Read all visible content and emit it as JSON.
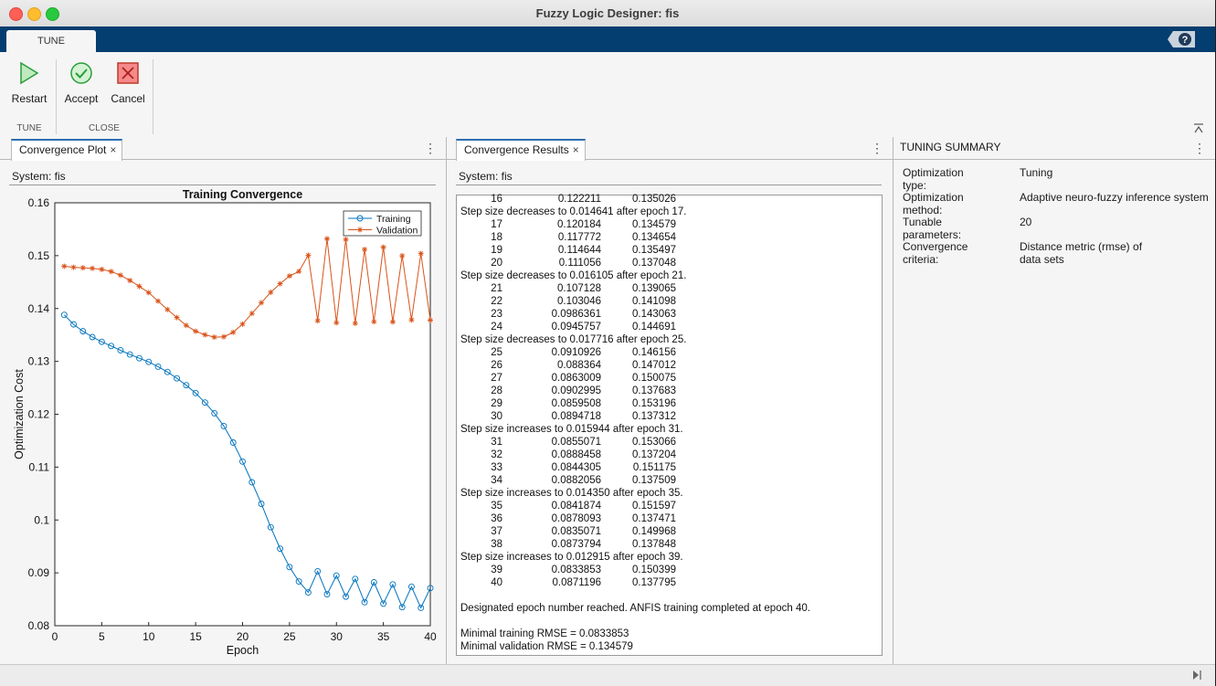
{
  "window": {
    "title": "Fuzzy Logic Designer: fis"
  },
  "ribbon": {
    "tab": "TUNE"
  },
  "toolstrip": {
    "restart_label": "Restart",
    "accept_label": "Accept",
    "cancel_label": "Cancel",
    "section_tune": "TUNE",
    "section_close": "CLOSE"
  },
  "plot_panel": {
    "tab_label": "Convergence Plot",
    "close_glyph": "×",
    "system": "System: fis"
  },
  "results_panel": {
    "tab_label": "Convergence Results",
    "close_glyph": "×",
    "system": "System: fis"
  },
  "summary": {
    "header": "TUNING SUMMARY",
    "rows": [
      {
        "key": "Optimization type:",
        "value": "Tuning"
      },
      {
        "key": "Optimization method:",
        "value": "Adaptive neuro-fuzzy inference system"
      },
      {
        "key": "Tunable parameters:",
        "value": "20"
      },
      {
        "key": "Convergence criteria:",
        "value": "Distance metric (rmse) of data sets"
      }
    ]
  },
  "results": [
    {
      "epoch": "16",
      "train": "0.122211",
      "val": "0.135026"
    },
    {
      "text": "Step size decreases to 0.014641 after epoch 17."
    },
    {
      "epoch": "17",
      "train": "0.120184",
      "val": "0.134579"
    },
    {
      "epoch": "18",
      "train": "0.117772",
      "val": "0.134654"
    },
    {
      "epoch": "19",
      "train": "0.114644",
      "val": "0.135497"
    },
    {
      "epoch": "20",
      "train": "0.111056",
      "val": "0.137048"
    },
    {
      "text": "Step size decreases to 0.016105 after epoch 21."
    },
    {
      "epoch": "21",
      "train": "0.107128",
      "val": "0.139065"
    },
    {
      "epoch": "22",
      "train": "0.103046",
      "val": "0.141098"
    },
    {
      "epoch": "23",
      "train": "0.0986361",
      "val": "0.143063"
    },
    {
      "epoch": "24",
      "train": "0.0945757",
      "val": "0.144691"
    },
    {
      "text": "Step size decreases to 0.017716 after epoch 25."
    },
    {
      "epoch": "25",
      "train": "0.0910926",
      "val": "0.146156"
    },
    {
      "epoch": "26",
      "train": "0.088364",
      "val": "0.147012"
    },
    {
      "epoch": "27",
      "train": "0.0863009",
      "val": "0.150075"
    },
    {
      "epoch": "28",
      "train": "0.0902995",
      "val": "0.137683"
    },
    {
      "epoch": "29",
      "train": "0.0859508",
      "val": "0.153196"
    },
    {
      "epoch": "30",
      "train": "0.0894718",
      "val": "0.137312"
    },
    {
      "text": "Step size increases to 0.015944 after epoch 31."
    },
    {
      "epoch": "31",
      "train": "0.0855071",
      "val": "0.153066"
    },
    {
      "epoch": "32",
      "train": "0.0888458",
      "val": "0.137204"
    },
    {
      "epoch": "33",
      "train": "0.0844305",
      "val": "0.151175"
    },
    {
      "epoch": "34",
      "train": "0.0882056",
      "val": "0.137509"
    },
    {
      "text": "Step size increases to 0.014350 after epoch 35."
    },
    {
      "epoch": "35",
      "train": "0.0841874",
      "val": "0.151597"
    },
    {
      "epoch": "36",
      "train": "0.0878093",
      "val": "0.137471"
    },
    {
      "epoch": "37",
      "train": "0.0835071",
      "val": "0.149968"
    },
    {
      "epoch": "38",
      "train": "0.0873794",
      "val": "0.137848"
    },
    {
      "text": "Step size increases to 0.012915 after epoch 39."
    },
    {
      "epoch": "39",
      "train": "0.0833853",
      "val": "0.150399"
    },
    {
      "epoch": "40",
      "train": "0.0871196",
      "val": "0.137795"
    },
    {
      "text": ""
    },
    {
      "text": "Designated epoch number reached. ANFIS training completed at epoch 40."
    },
    {
      "text": ""
    },
    {
      "text": "Minimal training RMSE = 0.0833853"
    },
    {
      "text": "Minimal validation RMSE = 0.134579"
    }
  ],
  "colors": {
    "training": "#0072bd",
    "validation": "#d95319",
    "ribbon_bar": "#043d6f"
  },
  "chart_data": {
    "type": "line",
    "title": "Training Convergence",
    "xlabel": "Epoch",
    "ylabel": "Optimization Cost",
    "xlim": [
      0,
      40
    ],
    "ylim": [
      0.08,
      0.16
    ],
    "xticks": [
      0,
      5,
      10,
      15,
      20,
      25,
      30,
      35,
      40
    ],
    "yticks": [
      0.08,
      0.09,
      0.1,
      0.11,
      0.12,
      0.13,
      0.14,
      0.15,
      0.16
    ],
    "legend_position": "top-right",
    "grid": false,
    "series": [
      {
        "name": "Training",
        "marker": "circle",
        "color": "#0072bd",
        "x": [
          1,
          2,
          3,
          4,
          5,
          6,
          7,
          8,
          9,
          10,
          11,
          12,
          13,
          14,
          15,
          16,
          17,
          18,
          19,
          20,
          21,
          22,
          23,
          24,
          25,
          26,
          27,
          28,
          29,
          30,
          31,
          32,
          33,
          34,
          35,
          36,
          37,
          38,
          39,
          40
        ],
        "values": [
          0.1388,
          0.137,
          0.1357,
          0.1346,
          0.1337,
          0.1329,
          0.1321,
          0.1313,
          0.1306,
          0.1299,
          0.129,
          0.128,
          0.1268,
          0.1255,
          0.124,
          0.122211,
          0.120184,
          0.117772,
          0.114644,
          0.111056,
          0.107128,
          0.103046,
          0.0986361,
          0.0945757,
          0.0910926,
          0.088364,
          0.0863009,
          0.0902995,
          0.0859508,
          0.0894718,
          0.0855071,
          0.0888458,
          0.0844305,
          0.0882056,
          0.0841874,
          0.0878093,
          0.0835071,
          0.0873794,
          0.0833853,
          0.0871196
        ]
      },
      {
        "name": "Validation",
        "marker": "star",
        "color": "#d95319",
        "x": [
          1,
          2,
          3,
          4,
          5,
          6,
          7,
          8,
          9,
          10,
          11,
          12,
          13,
          14,
          15,
          16,
          17,
          18,
          19,
          20,
          21,
          22,
          23,
          24,
          25,
          26,
          27,
          28,
          29,
          30,
          31,
          32,
          33,
          34,
          35,
          36,
          37,
          38,
          39,
          40
        ],
        "values": [
          0.148,
          0.1478,
          0.1477,
          0.1476,
          0.1474,
          0.147,
          0.1463,
          0.1453,
          0.1442,
          0.143,
          0.1414,
          0.1398,
          0.1383,
          0.1368,
          0.1357,
          0.135026,
          0.134579,
          0.134654,
          0.135497,
          0.137048,
          0.139065,
          0.141098,
          0.143063,
          0.144691,
          0.146156,
          0.147012,
          0.150075,
          0.137683,
          0.153196,
          0.137312,
          0.153066,
          0.137204,
          0.151175,
          0.137509,
          0.151597,
          0.137471,
          0.149968,
          0.137848,
          0.150399,
          0.137795
        ]
      }
    ]
  }
}
